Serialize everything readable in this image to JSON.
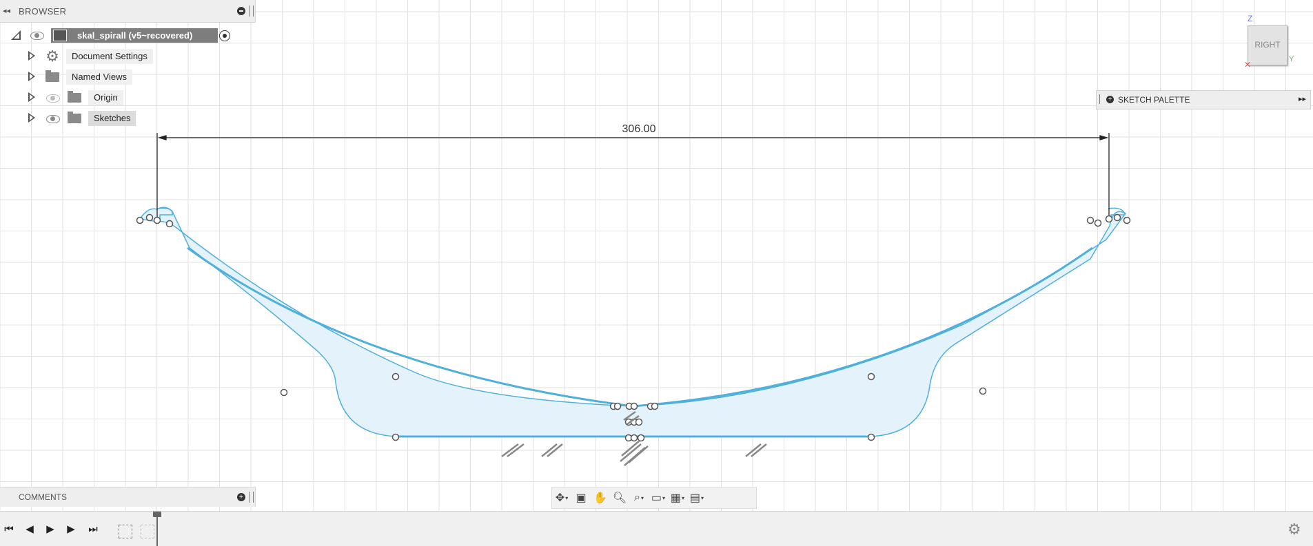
{
  "browser": {
    "collapse_icon": "double-left-arrow-icon",
    "title": "BROWSER",
    "root": {
      "label": "skal_spirall (v5~recovered)"
    },
    "items": [
      {
        "label": "Document Settings",
        "icon": "gear-icon"
      },
      {
        "label": "Named Views",
        "icon": "folder-icon"
      },
      {
        "label": "Origin",
        "icon": "folder-icon",
        "visible": false
      },
      {
        "label": "Sketches",
        "icon": "folder-icon",
        "visible": true
      }
    ]
  },
  "comments": {
    "title": "COMMENTS"
  },
  "sketch_palette": {
    "title": "SKETCH PALETTE"
  },
  "viewcube": {
    "face": "RIGHT",
    "axis_z": "Z",
    "axis_y": "Y",
    "axis_x": "X"
  },
  "sketch": {
    "dimension": "306.00"
  },
  "colors": {
    "sketch_line": "#4fb0dc",
    "sketch_fill": "#e3f2fb",
    "grid": "#e2e2e2"
  },
  "nav_toolbar": {
    "buttons": [
      "orbit-icon",
      "look-at-icon",
      "pan-icon",
      "zoom-icon",
      "fit-icon",
      "display-settings-icon",
      "grid-settings-icon",
      "viewports-icon"
    ]
  },
  "timeline": {
    "buttons": [
      "go-to-start-icon",
      "step-back-icon",
      "play-icon",
      "step-forward-icon",
      "go-to-end-icon"
    ]
  }
}
